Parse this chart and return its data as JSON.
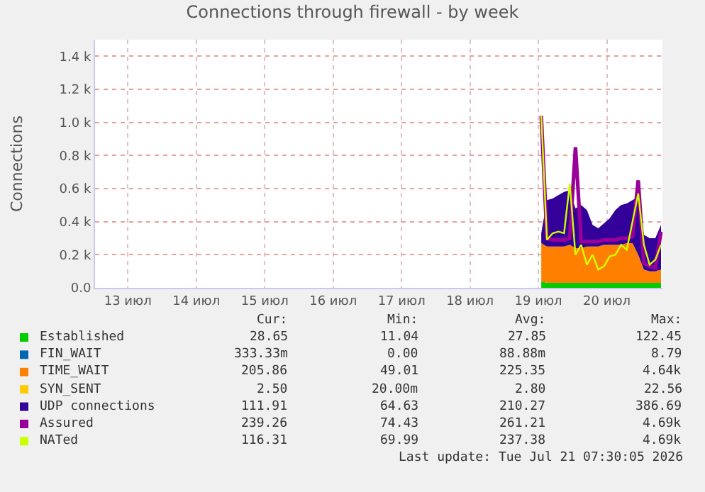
{
  "chart_data": {
    "type": "area",
    "title": "Connections through firewall - by week",
    "ylabel": "Connections",
    "stacked": true,
    "grid": true,
    "legend": "bottom",
    "x": [
      "2026-07-19T13:00",
      "2026-07-19T15:00",
      "2026-07-19T17:00",
      "2026-07-19T19:00",
      "2026-07-19T21:00",
      "2026-07-19T23:00",
      "2026-07-20T01:00",
      "2026-07-20T03:00",
      "2026-07-20T05:00",
      "2026-07-20T07:00",
      "2026-07-20T09:00",
      "2026-07-20T11:00",
      "2026-07-20T13:00",
      "2026-07-20T15:00",
      "2026-07-20T17:00",
      "2026-07-20T19:00",
      "2026-07-20T21:00",
      "2026-07-20T23:00",
      "2026-07-21T01:00",
      "2026-07-21T03:00",
      "2026-07-21T05:00",
      "2026-07-21T07:00"
    ],
    "xlim": [
      "2026-07-13T00:30",
      "2026-07-21T07:30"
    ],
    "xticks": [
      {
        "value": "2026-07-13T12:00",
        "label": "13 июл"
      },
      {
        "value": "2026-07-14T12:00",
        "label": "14 июл"
      },
      {
        "value": "2026-07-15T12:00",
        "label": "15 июл"
      },
      {
        "value": "2026-07-16T12:00",
        "label": "16 июл"
      },
      {
        "value": "2026-07-17T12:00",
        "label": "17 июл"
      },
      {
        "value": "2026-07-18T12:00",
        "label": "18 июл"
      },
      {
        "value": "2026-07-19T12:00",
        "label": "19 июл"
      },
      {
        "value": "2026-07-20T12:00",
        "label": "20 июл"
      }
    ],
    "ylim": [
      0,
      1500
    ],
    "yticks": [
      {
        "value": 0,
        "label": "0.0"
      },
      {
        "value": 200,
        "label": "0.2 k"
      },
      {
        "value": 400,
        "label": "0.4 k"
      },
      {
        "value": 600,
        "label": "0.6 k"
      },
      {
        "value": 800,
        "label": "0.8 k"
      },
      {
        "value": 1000,
        "label": "1.0 k"
      },
      {
        "value": 1200,
        "label": "1.2 k"
      },
      {
        "value": 1400,
        "label": "1.4 k"
      }
    ],
    "series": [
      {
        "name": "Established",
        "color": "#00cc00",
        "values": [
          40,
          30,
          30,
          30,
          30,
          30,
          30,
          30,
          30,
          30,
          30,
          30,
          30,
          30,
          30,
          30,
          30,
          30,
          30,
          30,
          30,
          30
        ]
      },
      {
        "name": "FIN_WAIT",
        "color": "#0066b3",
        "values": [
          null,
          null,
          null,
          null,
          null,
          null,
          null,
          null,
          null,
          null,
          null,
          null,
          null,
          null,
          null,
          null,
          null,
          null,
          null,
          null,
          null,
          null
        ]
      },
      {
        "name": "TIME_WAIT",
        "color": "#ff8000",
        "values": [
          230,
          220,
          220,
          220,
          220,
          230,
          210,
          210,
          220,
          220,
          220,
          230,
          230,
          230,
          230,
          240,
          240,
          170,
          80,
          70,
          70,
          80
        ]
      },
      {
        "name": "SYN_SENT",
        "color": "#ffcc00",
        "values": [
          null,
          null,
          null,
          null,
          null,
          null,
          null,
          null,
          null,
          null,
          null,
          null,
          null,
          null,
          null,
          null,
          null,
          null,
          null,
          null,
          null,
          null
        ]
      },
      {
        "name": "UDP connections",
        "color": "#330099",
        "values": [
          60,
          280,
          290,
          310,
          330,
          330,
          240,
          260,
          220,
          130,
          110,
          130,
          160,
          210,
          240,
          240,
          260,
          350,
          210,
          200,
          200,
          270
        ]
      },
      {
        "name": "Assured",
        "color": "#990099",
        "type": "line",
        "values": [
          1040,
          300,
          290,
          290,
          290,
          300,
          850,
          280,
          280,
          280,
          280,
          290,
          290,
          290,
          300,
          300,
          310,
          650,
          150,
          130,
          120,
          340
        ]
      },
      {
        "name": "NATed",
        "color": "#ccff00",
        "type": "line",
        "values": [
          1040,
          290,
          330,
          340,
          330,
          630,
          200,
          260,
          140,
          200,
          110,
          130,
          190,
          200,
          260,
          230,
          400,
          570,
          260,
          140,
          170,
          260
        ]
      }
    ],
    "annotations": [
      "Cur:",
      "Min:",
      "Avg:",
      "Max:",
      "28.65",
      "11.04",
      "27.85",
      "122.45",
      "333.33m",
      "0.00",
      "88.88m",
      "8.79",
      "205.86",
      "49.01",
      "225.35",
      "4.64k",
      "2.50",
      "20.00m",
      "2.80",
      "22.56",
      "111.91",
      "64.63",
      "210.27",
      "386.69",
      "239.26",
      "74.43",
      "261.21",
      "4.69k",
      "116.31",
      "69.99",
      "237.38",
      "4.69k",
      "Last update: Tue Jul 21 07:30:05 2026"
    ]
  }
}
